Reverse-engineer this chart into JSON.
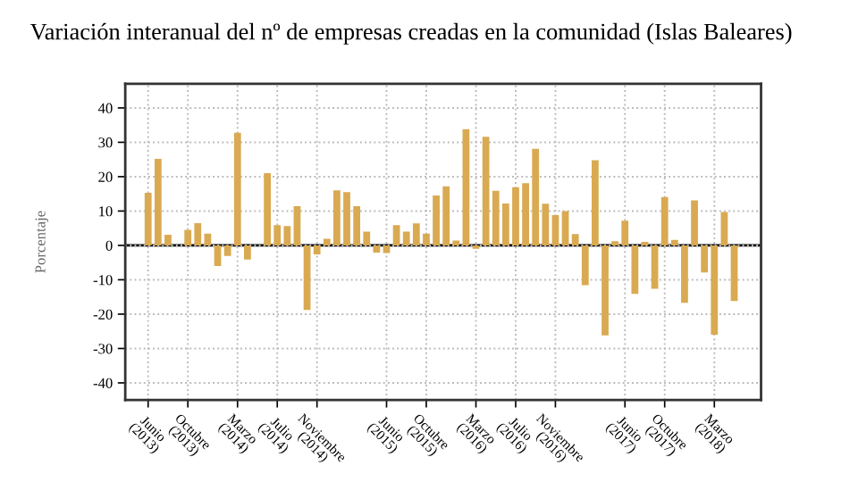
{
  "chart_data": {
    "type": "bar",
    "title": "Variación interanual del nº de empresas creadas en la comunidad (Islas Baleares)",
    "ylabel": "Porcentaje",
    "categories": [
      "Junio (2013)",
      null,
      null,
      null,
      "Octubre (2013)",
      null,
      null,
      null,
      null,
      "Marzo (2014)",
      null,
      null,
      null,
      "Julio (2014)",
      null,
      null,
      null,
      "Noviembre (2014)",
      null,
      null,
      null,
      null,
      null,
      null,
      "Junio (2015)",
      null,
      null,
      null,
      "Octubre (2015)",
      null,
      null,
      null,
      null,
      "Marzo (2016)",
      null,
      null,
      null,
      "Julio (2016)",
      null,
      null,
      null,
      "Noviembre (2016)",
      null,
      null,
      null,
      null,
      null,
      null,
      "Junio (2017)",
      null,
      null,
      null,
      "Octubre (2017)",
      null,
      null,
      null,
      null,
      "Marzo (2018)",
      null,
      null
    ],
    "values": [
      15.3,
      25.2,
      3.1,
      null,
      4.5,
      6.5,
      3.4,
      -6.0,
      -3.1,
      32.8,
      -4.1,
      null,
      21.0,
      5.9,
      5.6,
      11.4,
      -18.8,
      -2.6,
      1.9,
      16.0,
      15.5,
      11.4,
      4.0,
      -2.1,
      -2.2,
      5.9,
      4.0,
      6.4,
      3.4,
      14.5,
      17.2,
      1.4,
      33.8,
      -1.0,
      31.6,
      15.9,
      12.2,
      16.9,
      18.1,
      28.1,
      12.1,
      8.8,
      10.0,
      3.3,
      -11.6,
      24.8,
      -26.2,
      1.2,
      7.2,
      -14.1,
      1.0,
      -12.6,
      14.1,
      1.6,
      -16.7,
      13.1,
      -7.9,
      -26.0,
      9.7,
      -16.2
    ],
    "color": "#d9aa52",
    "ylim": [
      -45,
      47
    ],
    "yticks": [
      -40,
      -30,
      -20,
      -10,
      0,
      10,
      20,
      30,
      40
    ],
    "grid": true,
    "ref_lines": [
      {
        "axis": "y",
        "value": 0,
        "color": "#000000"
      }
    ]
  }
}
